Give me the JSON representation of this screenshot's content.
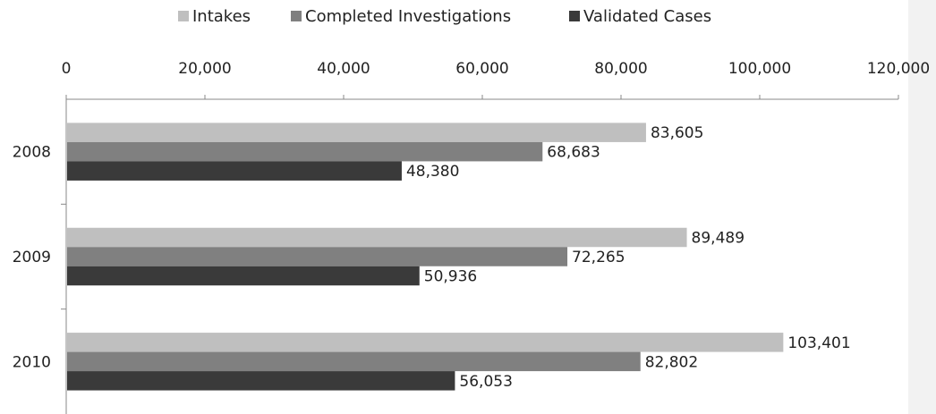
{
  "chart_data": {
    "type": "bar",
    "orientation": "horizontal",
    "categories": [
      "2008",
      "2009",
      "2010"
    ],
    "series": [
      {
        "name": "Intakes",
        "color": "#bfbfbf",
        "values": [
          83605,
          89489,
          103401
        ],
        "labels": [
          "83,605",
          "89,489",
          "103,401"
        ]
      },
      {
        "name": "Completed Investigations",
        "color": "#808080",
        "values": [
          68683,
          72265,
          82802
        ],
        "labels": [
          "68,683",
          "72,265",
          "82,802"
        ]
      },
      {
        "name": "Validated Cases",
        "color": "#3a3a3a",
        "values": [
          48380,
          50936,
          56053
        ],
        "labels": [
          "48,380",
          "50,936",
          "56,053"
        ]
      }
    ],
    "xlim": [
      0,
      120000
    ],
    "x_ticks": [
      0,
      20000,
      40000,
      60000,
      80000,
      100000,
      120000
    ],
    "x_tick_labels": [
      "0",
      "20,000",
      "40,000",
      "60,000",
      "80,000",
      "100,000",
      "120,000"
    ],
    "x_axis_position": "top",
    "legend_position": "top",
    "grid": false,
    "title": "",
    "xlabel": "",
    "ylabel": ""
  }
}
